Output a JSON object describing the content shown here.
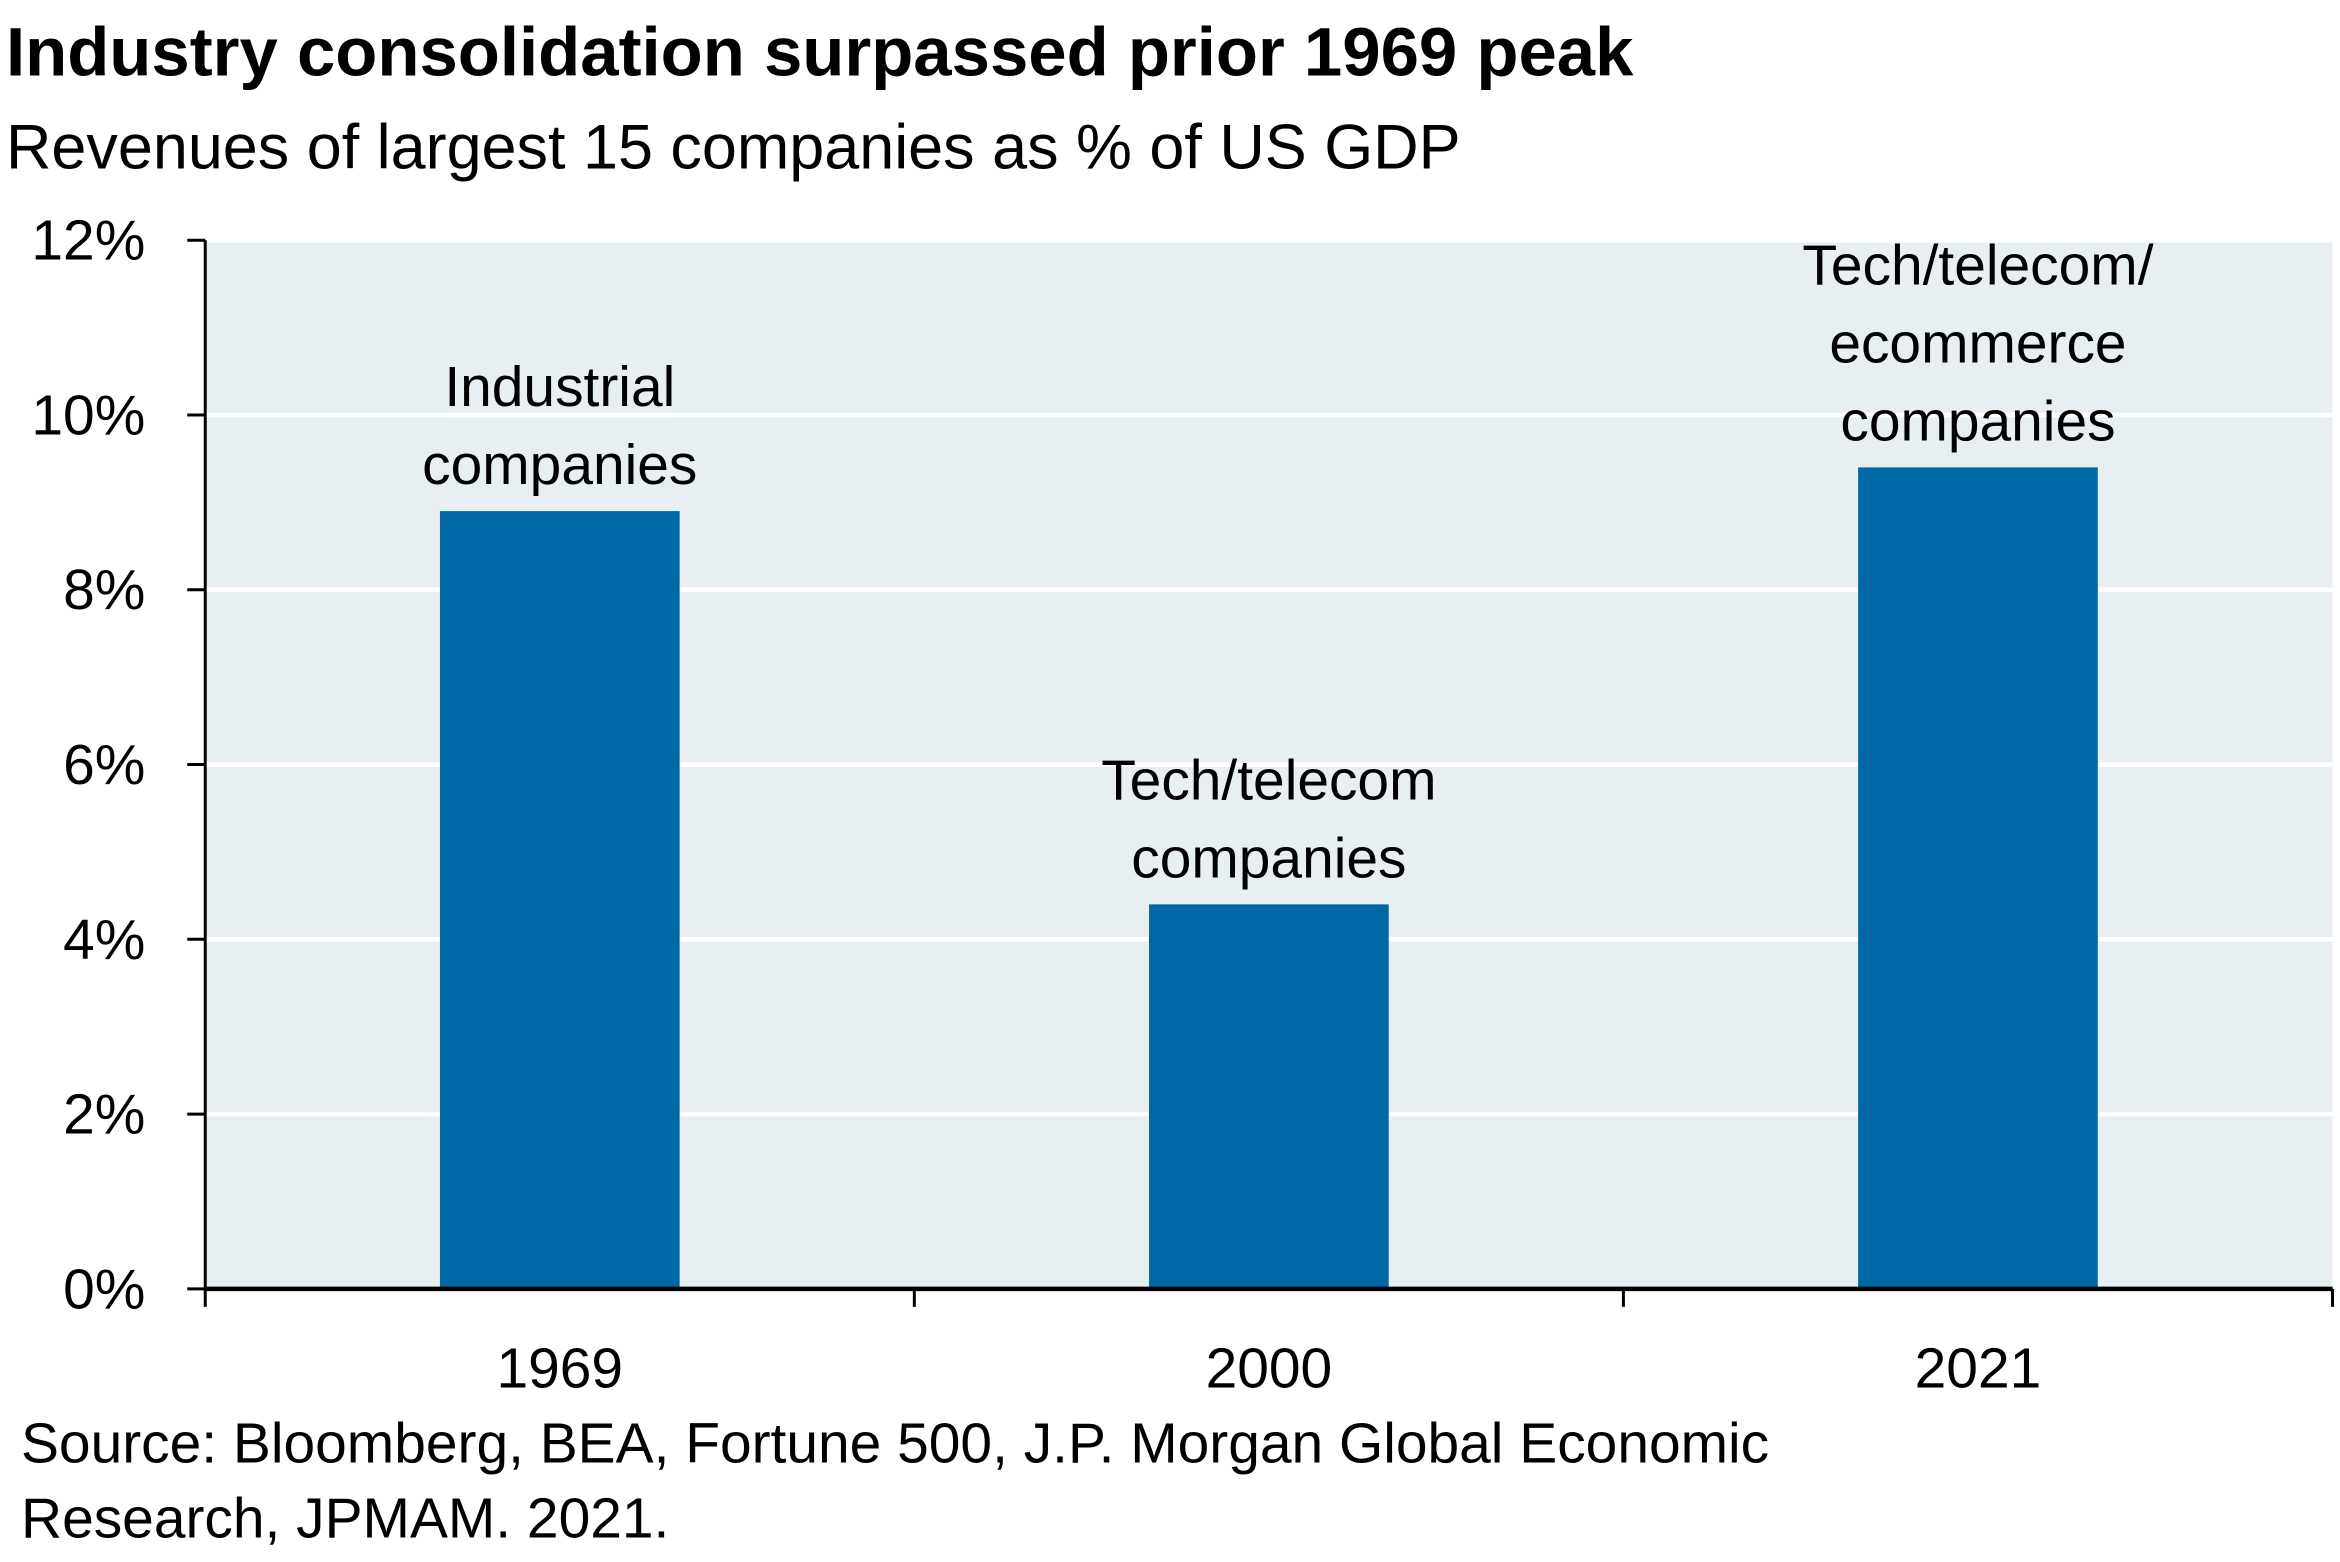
{
  "chart_data": {
    "type": "bar",
    "title": "Industry consolidation surpassed prior 1969 peak",
    "subtitle": "Revenues of largest 15 companies as % of US GDP",
    "categories": [
      "1969",
      "2000",
      "2021"
    ],
    "values": [
      8.9,
      4.4,
      9.4
    ],
    "color": "#0068a5",
    "bar_labels": [
      [
        "Industrial",
        "companies"
      ],
      [
        "Tech/telecom",
        "companies"
      ],
      [
        "Tech/telecom/",
        "ecommerce",
        "companies"
      ]
    ],
    "ylim": [
      0,
      12
    ],
    "yticks": [
      {
        "value": 0,
        "label": "0%"
      },
      {
        "value": 2,
        "label": "2%"
      },
      {
        "value": 4,
        "label": "4%"
      },
      {
        "value": 6,
        "label": "6%"
      },
      {
        "value": 8,
        "label": "8%"
      },
      {
        "value": 10,
        "label": "10%"
      },
      {
        "value": 12,
        "label": "12%"
      }
    ],
    "grid": true,
    "source": [
      "Source: Bloomberg, BEA, Fortune 500, J.P. Morgan Global Economic",
      "Research, JPMAM. 2021."
    ]
  }
}
